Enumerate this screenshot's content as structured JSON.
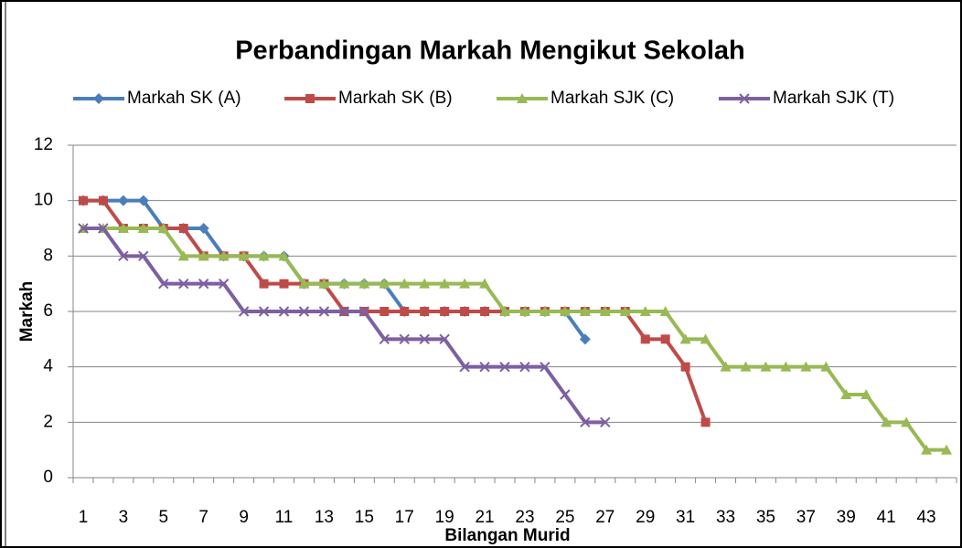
{
  "chart_data": {
    "type": "line",
    "title": "Perbandingan Markah Mengikut Sekolah",
    "y_label": "Markah",
    "x_label": "Bilangan Murid",
    "categories": [
      "1",
      null,
      "3",
      null,
      "5",
      null,
      "7",
      null,
      "9",
      null,
      "11",
      null,
      "13",
      null,
      "15",
      null,
      "17",
      null,
      "19",
      null,
      "21",
      null,
      "23",
      null,
      "25",
      null,
      "27",
      null,
      "29",
      null,
      "31",
      null,
      "33",
      null,
      "35",
      null,
      "37",
      null,
      "39",
      null,
      "41",
      null,
      "43",
      null
    ],
    "series": [
      {
        "name": "Markah SK (A)",
        "color": "#4a7ebb",
        "marker": "diamond",
        "values": [
          10,
          10,
          10,
          10,
          9,
          9,
          9,
          8,
          8,
          8,
          8,
          7,
          7,
          7,
          7,
          7,
          6,
          6,
          6,
          6,
          6,
          6,
          6,
          6,
          6,
          5,
          null,
          null,
          null,
          null,
          null,
          null,
          null,
          null,
          null,
          null,
          null,
          null,
          null,
          null,
          null,
          null,
          null,
          null
        ]
      },
      {
        "name": "Markah SK (B)",
        "color": "#be4b48",
        "marker": "square",
        "values": [
          10,
          10,
          9,
          9,
          9,
          9,
          8,
          8,
          8,
          7,
          7,
          7,
          7,
          6,
          6,
          6,
          6,
          6,
          6,
          6,
          6,
          6,
          6,
          6,
          6,
          6,
          6,
          6,
          5,
          5,
          4,
          2,
          null,
          null,
          null,
          null,
          null,
          null,
          null,
          null,
          null,
          null,
          null,
          null
        ]
      },
      {
        "name": "Markah SJK (C)",
        "color": "#98b954",
        "marker": "triangle",
        "values": [
          9,
          9,
          9,
          9,
          9,
          8,
          8,
          8,
          8,
          8,
          8,
          7,
          7,
          7,
          7,
          7,
          7,
          7,
          7,
          7,
          7,
          6,
          6,
          6,
          6,
          6,
          6,
          6,
          6,
          6,
          5,
          5,
          4,
          4,
          4,
          4,
          4,
          4,
          3,
          3,
          2,
          2,
          1,
          1
        ]
      },
      {
        "name": "Markah SJK (T)",
        "color": "#7d60a0",
        "marker": "x",
        "values": [
          9,
          9,
          8,
          8,
          7,
          7,
          7,
          7,
          6,
          6,
          6,
          6,
          6,
          6,
          6,
          5,
          5,
          5,
          5,
          4,
          4,
          4,
          4,
          4,
          3,
          2,
          2,
          null,
          null,
          null,
          null,
          null,
          null,
          null,
          null,
          null,
          null,
          null,
          null,
          null,
          null,
          null,
          null,
          null
        ]
      }
    ],
    "ylim": [
      0,
      12
    ],
    "yticks": [
      0,
      2,
      4,
      6,
      8,
      10,
      12
    ],
    "grid": true,
    "legend": "top"
  }
}
